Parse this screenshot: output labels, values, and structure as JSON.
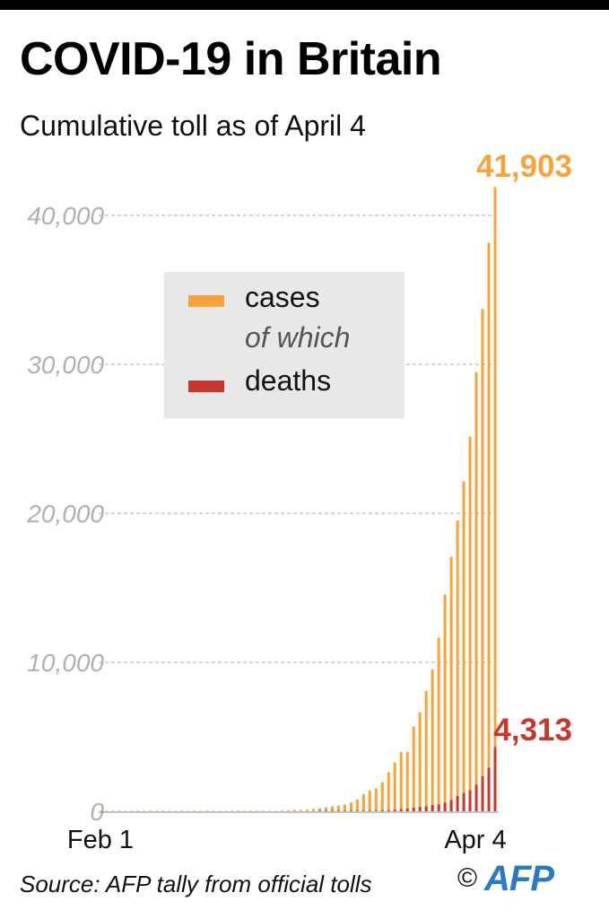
{
  "header": {
    "title": "COVID-19 in Britain",
    "subtitle": "Cumulative toll as of April 4"
  },
  "legend": {
    "cases_label": "cases",
    "middle_label": "of which",
    "deaths_label": "deaths"
  },
  "footer": {
    "source": "Source: AFP tally from official tolls",
    "copyright": "©",
    "logo": "AFP"
  },
  "colors": {
    "cases": "#f7a33a",
    "deaths": "#c8372d",
    "gridline": "#a8a8a8",
    "legend_bg": "#e8e8e8"
  },
  "chart_data": {
    "type": "bar",
    "title": "COVID-19 in Britain",
    "subtitle": "Cumulative toll as of April 4",
    "x_range": [
      "Feb 1",
      "Apr 4"
    ],
    "x_tick_labels": [
      "Feb 1",
      "Apr 4"
    ],
    "y_ticks": [
      0,
      10000,
      20000,
      30000,
      40000
    ],
    "y_tick_labels": [
      "0",
      "10,000",
      "20,000",
      "30,000",
      "40,000"
    ],
    "ylim": [
      0,
      42000
    ],
    "grid": true,
    "legend_position": "center",
    "end_labels": {
      "cases": "41,903",
      "deaths": "4,313"
    },
    "series": [
      {
        "name": "cases",
        "values": [
          2,
          2,
          2,
          2,
          2,
          3,
          3,
          3,
          3,
          8,
          8,
          9,
          9,
          9,
          9,
          9,
          9,
          9,
          9,
          9,
          9,
          9,
          9,
          13,
          13,
          15,
          20,
          23,
          36,
          40,
          51,
          85,
          87,
          116,
          164,
          209,
          278,
          321,
          373,
          456,
          590,
          798,
          1140,
          1391,
          1543,
          1950,
          2626,
          3269,
          3983,
          3983,
          5683,
          6650,
          8077,
          9529,
          11658,
          14543,
          17089,
          19522,
          22141,
          25150,
          29474,
          33718,
          38168,
          41903
        ]
      },
      {
        "name": "deaths",
        "values": [
          0,
          0,
          0,
          0,
          0,
          0,
          0,
          0,
          0,
          0,
          0,
          0,
          0,
          0,
          0,
          0,
          0,
          0,
          0,
          0,
          0,
          0,
          0,
          0,
          0,
          0,
          0,
          0,
          0,
          0,
          0,
          0,
          0,
          0,
          0,
          1,
          1,
          2,
          2,
          3,
          6,
          8,
          10,
          21,
          35,
          56,
          71,
          104,
          144,
          177,
          233,
          281,
          335,
          422,
          465,
          578,
          759,
          1019,
          1228,
          1408,
          1789,
          2352,
          2921,
          4313
        ]
      }
    ]
  }
}
